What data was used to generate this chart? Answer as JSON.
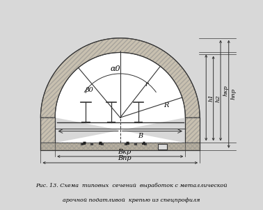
{
  "bg_color": "#d8d8d8",
  "diagram_bg": "#ffffff",
  "title_line1": "Рис. 13. Схема  типовых  сечений  выработок с металлической",
  "title_line2": "арочной податливой  крепью из спецпрофиля",
  "label_alpha": "α0",
  "label_beta": "β0",
  "label_r": "r",
  "label_R": "R",
  "label_B": "B",
  "label_Bkr": "Bкр",
  "label_Bpr": "Bпр",
  "label_h1": "h1",
  "label_h2": "h2",
  "label_hkr": "hкр",
  "label_hpr": "hпр",
  "arch_fill": "#c8c0b0",
  "arch_edge": "#444444",
  "line_color": "#333333"
}
